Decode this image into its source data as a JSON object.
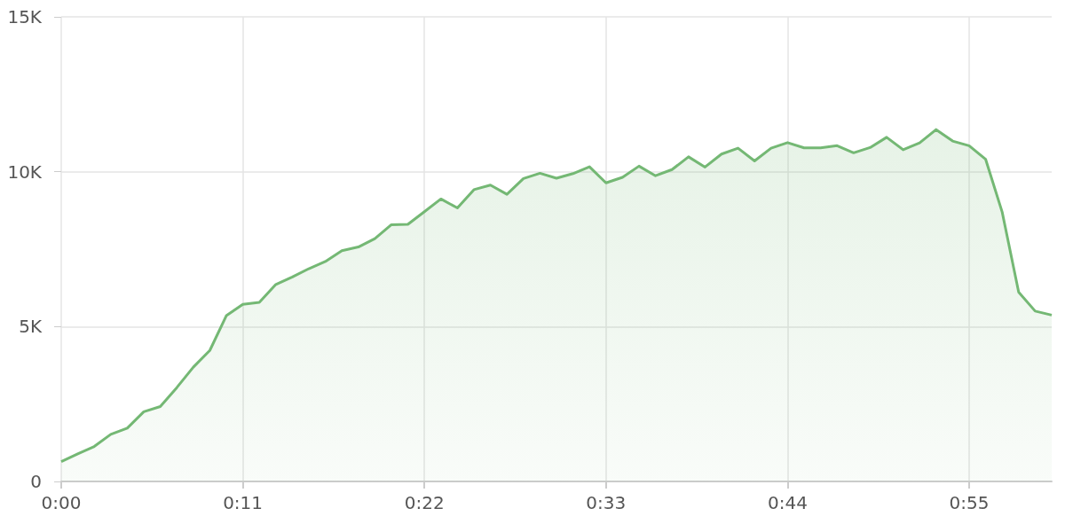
{
  "chart_data": {
    "type": "area",
    "x": [
      0,
      1,
      2,
      3,
      4,
      5,
      6,
      7,
      8,
      9,
      10,
      11,
      12,
      13,
      14,
      15,
      16,
      17,
      18,
      19,
      20,
      21,
      22,
      23,
      24,
      25,
      26,
      27,
      28,
      29,
      30,
      31,
      32,
      33,
      34,
      35,
      36,
      37,
      38,
      39,
      40,
      41,
      42,
      43,
      44,
      45,
      46,
      47,
      48,
      49,
      50,
      51,
      52,
      53,
      54,
      55,
      56,
      57,
      58,
      59,
      60
    ],
    "series": [
      {
        "color": "#74b874",
        "values": [
          640,
          890,
          1130,
          1520,
          1720,
          2250,
          2420,
          3030,
          3690,
          4230,
          5350,
          5720,
          5780,
          6360,
          6600,
          6870,
          7100,
          7450,
          7570,
          7840,
          8290,
          8300,
          8710,
          9120,
          8830,
          9420,
          9570,
          9270,
          9780,
          9950,
          9790,
          9940,
          10160,
          9640,
          9820,
          10180,
          9870,
          10070,
          10480,
          10150,
          10570,
          10760,
          10350,
          10760,
          10940,
          10770,
          10770,
          10840,
          10610,
          10780,
          11110,
          10710,
          10930,
          11360,
          10990,
          10840,
          10400,
          8700,
          6110,
          5500,
          5370
        ]
      }
    ],
    "xlim": [
      0,
      60
    ],
    "xticks": [
      {
        "value": 0,
        "label": "0:00"
      },
      {
        "value": 11,
        "label": "0:11"
      },
      {
        "value": 22,
        "label": "0:22"
      },
      {
        "value": 33,
        "label": "0:33"
      },
      {
        "value": 44,
        "label": "0:44"
      },
      {
        "value": 55,
        "label": "0:55"
      }
    ],
    "ylim": [
      0,
      15000
    ],
    "yticks": [
      {
        "value": 0,
        "label": "0"
      },
      {
        "value": 5000,
        "label": "5K"
      },
      {
        "value": 10000,
        "label": "10K"
      },
      {
        "value": 15000,
        "label": "15K"
      }
    ],
    "grid": true
  }
}
